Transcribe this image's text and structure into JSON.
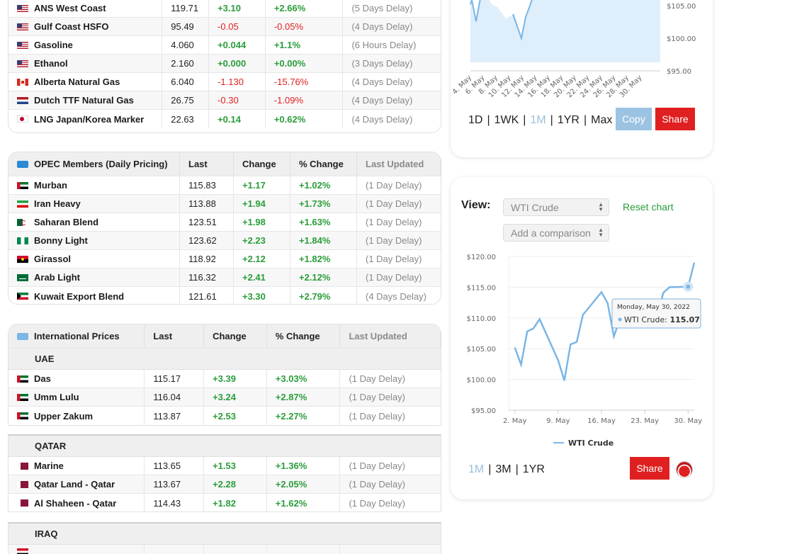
{
  "top_table": {
    "rows": [
      {
        "flag": "us",
        "name": "ANS West Coast",
        "last": "119.71",
        "change": "+3.10",
        "pct": "+2.66%",
        "updated": "(5 Days Delay)",
        "dir": "pos"
      },
      {
        "flag": "us",
        "name": "Gulf Coast HSFO",
        "last": "95.49",
        "change": "-0.05",
        "pct": "-0.05%",
        "updated": "(4 Days Delay)",
        "dir": "neg"
      },
      {
        "flag": "us",
        "name": "Gasoline",
        "last": "4.060",
        "change": "+0.044",
        "pct": "+1.1%",
        "updated": "(6 Hours Delay)",
        "dir": "pos"
      },
      {
        "flag": "us",
        "name": "Ethanol",
        "last": "2.160",
        "change": "+0.000",
        "pct": "+0.00%",
        "updated": "(3 Days Delay)",
        "dir": "pos"
      },
      {
        "flag": "ca",
        "name": "Alberta Natural Gas",
        "last": "6.040",
        "change": "-1.130",
        "pct": "-15.76%",
        "updated": "(4 Days Delay)",
        "dir": "neg"
      },
      {
        "flag": "nl",
        "name": "Dutch TTF Natural Gas",
        "last": "26.75",
        "change": "-0.30",
        "pct": "-1.09%",
        "updated": "(4 Days Delay)",
        "dir": "neg"
      },
      {
        "flag": "jp",
        "name": "LNG Japan/Korea Marker",
        "last": "22.63",
        "change": "+0.14",
        "pct": "+0.62%",
        "updated": "(4 Days Delay)",
        "dir": "pos"
      }
    ]
  },
  "opec_table": {
    "headers": {
      "name": "OPEC Members (Daily Pricing)",
      "last": "Last",
      "change": "Change",
      "pct": "% Change",
      "updated": "Last Updated"
    },
    "rows": [
      {
        "flag": "ae",
        "name": "Murban",
        "last": "115.83",
        "change": "+1.17",
        "pct": "+1.02%",
        "updated": "(1 Day Delay)",
        "dir": "pos"
      },
      {
        "flag": "ir",
        "name": "Iran Heavy",
        "last": "113.88",
        "change": "+1.94",
        "pct": "+1.73%",
        "updated": "(1 Day Delay)",
        "dir": "pos"
      },
      {
        "flag": "dz",
        "name": "Saharan Blend",
        "last": "123.51",
        "change": "+1.98",
        "pct": "+1.63%",
        "updated": "(1 Day Delay)",
        "dir": "pos"
      },
      {
        "flag": "ng",
        "name": "Bonny Light",
        "last": "123.62",
        "change": "+2.23",
        "pct": "+1.84%",
        "updated": "(1 Day Delay)",
        "dir": "pos"
      },
      {
        "flag": "ao",
        "name": "Girassol",
        "last": "118.92",
        "change": "+2.12",
        "pct": "+1.82%",
        "updated": "(1 Day Delay)",
        "dir": "pos"
      },
      {
        "flag": "sa",
        "name": "Arab Light",
        "last": "116.32",
        "change": "+2.41",
        "pct": "+2.12%",
        "updated": "(1 Day Delay)",
        "dir": "pos"
      },
      {
        "flag": "kw",
        "name": "Kuwait Export Blend",
        "last": "121.61",
        "change": "+3.30",
        "pct": "+2.79%",
        "updated": "(4 Days Delay)",
        "dir": "pos"
      }
    ]
  },
  "intl_table": {
    "headers": {
      "name": "International Prices",
      "last": "Last",
      "change": "Change",
      "pct": "% Change",
      "updated": "Last Updated"
    },
    "sections": [
      {
        "title": "UAE",
        "rows": [
          {
            "flag": "ae",
            "name": "Das",
            "last": "115.17",
            "change": "+3.39",
            "pct": "+3.03%",
            "updated": "(1 Day Delay)",
            "dir": "pos"
          },
          {
            "flag": "ae",
            "name": "Umm Lulu",
            "last": "116.04",
            "change": "+3.24",
            "pct": "+2.87%",
            "updated": "(1 Day Delay)",
            "dir": "pos"
          },
          {
            "flag": "ae",
            "name": "Upper Zakum",
            "last": "113.87",
            "change": "+2.53",
            "pct": "+2.27%",
            "updated": "(1 Day Delay)",
            "dir": "pos"
          }
        ]
      },
      {
        "title": "QATAR",
        "rows": [
          {
            "flag": "qa",
            "name": "Marine",
            "last": "113.65",
            "change": "+1.53",
            "pct": "+1.36%",
            "updated": "(1 Day Delay)",
            "dir": "pos"
          },
          {
            "flag": "qa",
            "name": "Qatar Land - Qatar",
            "last": "113.67",
            "change": "+2.28",
            "pct": "+2.05%",
            "updated": "(1 Day Delay)",
            "dir": "pos"
          },
          {
            "flag": "qa",
            "name": "Al Shaheen - Qatar",
            "last": "114.43",
            "change": "+1.82",
            "pct": "+1.62%",
            "updated": "(1 Day Delay)",
            "dir": "pos"
          }
        ]
      },
      {
        "title": "IRAQ",
        "rows": []
      }
    ]
  },
  "top_chart": {
    "y_ticks": [
      "$105.00",
      "$100.00",
      "$95.00"
    ],
    "x_ticks": [
      "4. May",
      "6. May",
      "8. May",
      "10. May",
      "12. May",
      "14. May",
      "16. May",
      "18. May",
      "20. May",
      "22. May",
      "24. May",
      "26. May",
      "28. May",
      "30. May"
    ],
    "ranges": [
      "1D",
      "1WK",
      "1M",
      "1YR",
      "Max"
    ],
    "active_range": "1M",
    "copy_label": "Copy",
    "share_label": "Share"
  },
  "bottom_chart": {
    "view_label": "View:",
    "select_value": "WTI Crude",
    "compare_placeholder": "Add a comparison",
    "reset_label": "Reset chart",
    "tooltip_date": "Monday, May 30, 2022",
    "tooltip_series": "WTI Crude:",
    "tooltip_value": "115.07",
    "legend": "WTI Crude",
    "ranges": [
      "1M",
      "3M",
      "1YR"
    ],
    "active_range": "1M",
    "share_label": "Share",
    "accent": "#7ab6e6"
  },
  "chart_data": {
    "type": "line",
    "title": "",
    "xlabel": "",
    "ylabel": "",
    "x_ticks": [
      "2. May",
      "9. May",
      "16. May",
      "23. May",
      "30. May"
    ],
    "y_ticks": [
      "$95.00",
      "$100.00",
      "$105.00",
      "$110.00",
      "$115.00",
      "$120.00"
    ],
    "ylim": [
      95,
      120
    ],
    "series": [
      {
        "name": "WTI Crude",
        "x": [
          "2022-05-02",
          "2022-05-03",
          "2022-05-04",
          "2022-05-05",
          "2022-05-06",
          "2022-05-09",
          "2022-05-10",
          "2022-05-11",
          "2022-05-12",
          "2022-05-13",
          "2022-05-16",
          "2022-05-17",
          "2022-05-18",
          "2022-05-19",
          "2022-05-20",
          "2022-05-23",
          "2022-05-24",
          "2022-05-25",
          "2022-05-26",
          "2022-05-27",
          "2022-05-30",
          "2022-05-31"
        ],
        "values": [
          105.2,
          102.4,
          107.8,
          108.3,
          109.8,
          103.1,
          99.8,
          105.7,
          106.1,
          110.5,
          114.2,
          112.4,
          107.0,
          109.9,
          110.3,
          110.3,
          109.8,
          110.2,
          114.1,
          115.0,
          115.07,
          119.0
        ]
      }
    ]
  }
}
